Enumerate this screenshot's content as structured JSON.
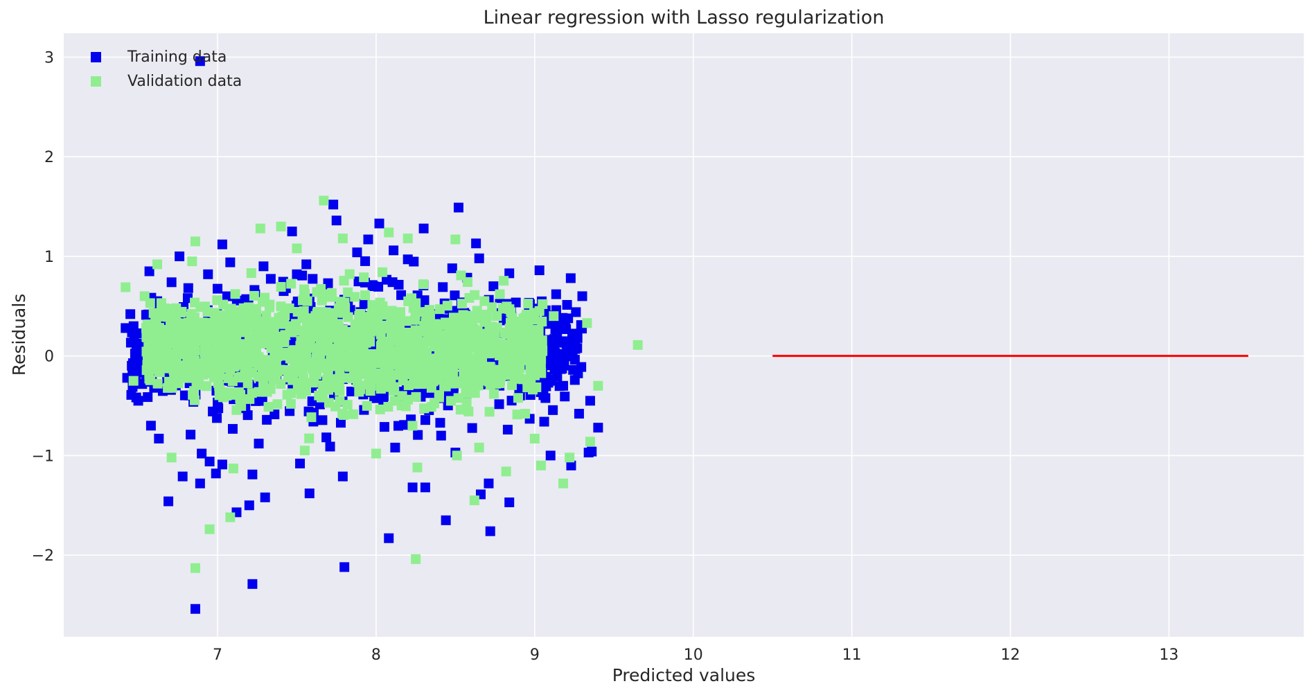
{
  "chart_data": {
    "type": "scatter",
    "title": "Linear regression with Lasso regularization",
    "xlabel": "Predicted values",
    "ylabel": "Residuals",
    "xlim": [
      6.03,
      13.85
    ],
    "ylim": [
      -2.82,
      3.24
    ],
    "xticks": [
      7,
      8,
      9,
      10,
      11,
      12,
      13
    ],
    "yticks": [
      -2,
      -1,
      0,
      1,
      2,
      3
    ],
    "xtick_labels": [
      "7",
      "8",
      "9",
      "10",
      "11",
      "12",
      "13"
    ],
    "ytick_labels": [
      "−2",
      "−1",
      "0",
      "1",
      "2",
      "3"
    ],
    "grid": true,
    "legend_position": "top-left",
    "colors": {
      "training": "#0000ee",
      "validation": "#90ee90",
      "hline": "#ff0000",
      "background": "#eaeaf2",
      "grid": "#ffffff"
    },
    "hline": {
      "y": 0,
      "xmin": 10.5,
      "xmax": 13.5
    },
    "series": [
      {
        "name": "Training data",
        "marker": "square",
        "color": "#0000ee",
        "points": [
          [
            6.89,
            2.96
          ],
          [
            6.86,
            -2.54
          ],
          [
            7.22,
            -2.29
          ],
          [
            7.8,
            -2.12
          ],
          [
            8.08,
            -1.83
          ],
          [
            8.44,
            -1.65
          ],
          [
            8.72,
            -1.76
          ],
          [
            8.84,
            -1.47
          ],
          [
            6.69,
            -1.46
          ],
          [
            7.58,
            -1.38
          ],
          [
            7.3,
            -1.42
          ],
          [
            7.2,
            -1.5
          ],
          [
            7.12,
            -1.57
          ],
          [
            6.89,
            -1.28
          ],
          [
            6.78,
            -1.21
          ],
          [
            6.99,
            -1.18
          ],
          [
            7.22,
            -1.19
          ],
          [
            7.79,
            -1.21
          ],
          [
            8.23,
            -1.32
          ],
          [
            8.31,
            -1.32
          ],
          [
            8.66,
            -1.39
          ],
          [
            8.71,
            -1.28
          ],
          [
            9.23,
            -1.1
          ],
          [
            9.36,
            -0.96
          ],
          [
            9.4,
            -0.72
          ],
          [
            9.28,
            -0.58
          ],
          [
            9.35,
            -0.45
          ],
          [
            9.26,
            0.44
          ],
          [
            9.3,
            0.6
          ],
          [
            9.03,
            0.86
          ],
          [
            8.84,
            0.83
          ],
          [
            8.63,
            1.13
          ],
          [
            8.52,
            1.49
          ],
          [
            8.3,
            1.28
          ],
          [
            8.02,
            1.33
          ],
          [
            7.73,
            1.52
          ],
          [
            7.75,
            1.36
          ],
          [
            7.47,
            1.25
          ],
          [
            7.03,
            1.12
          ],
          [
            6.76,
            1.0
          ],
          [
            6.57,
            0.85
          ],
          [
            6.45,
            0.42
          ],
          [
            6.42,
            0.28
          ],
          [
            6.43,
            -0.22
          ],
          [
            6.5,
            -0.45
          ],
          [
            6.58,
            -0.7
          ],
          [
            6.63,
            -0.83
          ],
          [
            6.95,
            -1.06
          ],
          [
            7.03,
            -1.09
          ],
          [
            7.52,
            -1.08
          ],
          [
            8.5,
            -0.97
          ],
          [
            8.2,
            0.97
          ],
          [
            7.95,
            1.17
          ],
          [
            7.08,
            0.94
          ],
          [
            6.62,
            0.55
          ],
          [
            6.52,
            0.12
          ],
          [
            6.49,
            -0.09
          ],
          [
            6.6,
            -0.32
          ],
          [
            7.26,
            -0.88
          ],
          [
            7.71,
            -0.91
          ],
          [
            8.12,
            -0.92
          ],
          [
            8.41,
            -0.8
          ],
          [
            8.83,
            -0.74
          ],
          [
            9.06,
            -0.66
          ],
          [
            9.18,
            -0.3
          ],
          [
            9.2,
            0.12
          ],
          [
            9.1,
            0.34
          ],
          [
            8.97,
            0.52
          ],
          [
            8.74,
            0.7
          ],
          [
            8.48,
            0.88
          ],
          [
            8.11,
            1.06
          ],
          [
            7.88,
            1.04
          ],
          [
            7.56,
            0.92
          ],
          [
            7.29,
            0.9
          ],
          [
            6.94,
            0.82
          ],
          [
            6.71,
            0.74
          ],
          [
            9.34,
            -0.97
          ],
          [
            9.1,
            -1.0
          ],
          [
            6.9,
            -0.98
          ],
          [
            6.83,
            -0.79
          ],
          [
            7.5,
            0.82
          ],
          [
            8.65,
            0.98
          ]
        ]
      },
      {
        "name": "Validation data",
        "marker": "square",
        "color": "#90ee90",
        "points": [
          [
            9.65,
            0.11
          ],
          [
            8.25,
            -2.04
          ],
          [
            6.86,
            -2.13
          ],
          [
            6.95,
            -1.74
          ],
          [
            7.08,
            -1.62
          ],
          [
            8.62,
            -1.45
          ],
          [
            9.18,
            -1.28
          ],
          [
            9.35,
            -0.86
          ],
          [
            9.4,
            -0.3
          ],
          [
            9.33,
            0.33
          ],
          [
            9.12,
            0.4
          ],
          [
            7.67,
            1.56
          ],
          [
            7.4,
            1.3
          ],
          [
            7.27,
            1.28
          ],
          [
            6.86,
            1.15
          ],
          [
            6.42,
            0.69
          ],
          [
            6.54,
            0.6
          ],
          [
            6.71,
            -1.02
          ],
          [
            7.1,
            -1.13
          ],
          [
            8.26,
            -1.12
          ],
          [
            8.82,
            -1.16
          ],
          [
            9.04,
            -1.1
          ],
          [
            9.22,
            -1.02
          ],
          [
            7.55,
            -0.95
          ],
          [
            8.0,
            -0.98
          ],
          [
            8.51,
            -1.0
          ],
          [
            8.65,
            -0.92
          ],
          [
            9.0,
            -0.83
          ],
          [
            6.84,
            0.95
          ],
          [
            6.62,
            0.92
          ],
          [
            7.5,
            1.08
          ],
          [
            7.79,
            1.18
          ],
          [
            8.08,
            1.24
          ],
          [
            8.2,
            1.18
          ],
          [
            8.5,
            1.17
          ],
          [
            8.78,
            0.62
          ],
          [
            9.05,
            0.52
          ],
          [
            8.94,
            -0.58
          ],
          [
            6.47,
            -0.25
          ],
          [
            6.55,
            0.28
          ]
        ]
      }
    ],
    "point_cloud": {
      "series": "Validation data",
      "x_range": [
        6.55,
        9.05
      ],
      "y_range": [
        -0.72,
        0.86
      ]
    }
  }
}
